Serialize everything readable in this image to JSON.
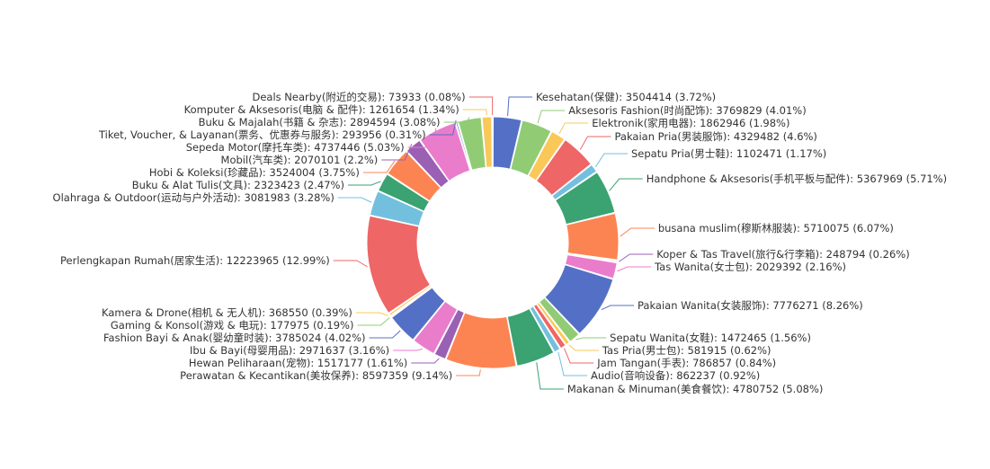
{
  "chart_data": {
    "type": "pie",
    "donut": true,
    "title": "",
    "colors": [
      "#5470c6",
      "#91cc75",
      "#fac858",
      "#ee6666",
      "#73c0de",
      "#3ba272",
      "#fc8452",
      "#9a60b4",
      "#ea7ccc"
    ],
    "slices": [
      {
        "label": "Kesehatan(保健): 3504414 (3.72%)",
        "value": 3504414
      },
      {
        "label": "Aksesoris Fashion(时尚配饰): 3769829 (4.01%)",
        "value": 3769829
      },
      {
        "label": "Elektronik(家用电器): 1862946 (1.98%)",
        "value": 1862946
      },
      {
        "label": "Pakaian Pria(男装服饰): 4329482 (4.6%)",
        "value": 4329482
      },
      {
        "label": "Sepatu Pria(男士鞋): 1102471 (1.17%)",
        "value": 1102471
      },
      {
        "label": "Handphone & Aksesoris(手机平板与配件): 5367969 (5.71%)",
        "value": 5367969
      },
      {
        "label": "busana muslim(穆斯林服装): 5710075 (6.07%)",
        "value": 5710075
      },
      {
        "label": "Koper & Tas Travel(旅行&行李箱): 248794 (0.26%)",
        "value": 248794
      },
      {
        "label": "Tas Wanita(女士包): 2029392 (2.16%)",
        "value": 2029392
      },
      {
        "label": "Pakaian Wanita(女装服饰): 7776271 (8.26%)",
        "value": 7776271
      },
      {
        "label": "Sepatu Wanita(女鞋): 1472465 (1.56%)",
        "value": 1472465
      },
      {
        "label": "Tas Pria(男士包): 581915 (0.62%)",
        "value": 581915
      },
      {
        "label": "Jam Tangan(手表): 786857 (0.84%)",
        "value": 786857
      },
      {
        "label": "Audio(音响设备): 862237 (0.92%)",
        "value": 862237
      },
      {
        "label": "Makanan & Minuman(美食餐饮): 4780752 (5.08%)",
        "value": 4780752
      },
      {
        "label": "Perawatan & Kecantikan(美妆保养): 8597359 (9.14%)",
        "value": 8597359
      },
      {
        "label": "Hewan Peliharaan(宠物): 1517177 (1.61%)",
        "value": 1517177
      },
      {
        "label": "Ibu & Bayi(母婴用品): 2971637 (3.16%)",
        "value": 2971637
      },
      {
        "label": "Fashion Bayi & Anak(婴幼童时装): 3785024 (4.02%)",
        "value": 3785024
      },
      {
        "label": "Gaming & Konsol(游戏 & 电玩): 177975 (0.19%)",
        "value": 177975
      },
      {
        "label": "Kamera & Drone(相机 & 无人机): 368550 (0.39%)",
        "value": 368550
      },
      {
        "label": "Perlengkapan Rumah(居家生活): 12223965 (12.99%)",
        "value": 12223965
      },
      {
        "label": "Olahraga & Outdoor(运动与户外活动): 3081983 (3.28%)",
        "value": 3081983
      },
      {
        "label": "Buku & Alat Tulis(文具): 2323423 (2.47%)",
        "value": 2323423
      },
      {
        "label": "Hobi & Koleksi(珍藏品): 3524004 (3.75%)",
        "value": 3524004
      },
      {
        "label": "Mobil(汽车类): 2070101 (2.2%)",
        "value": 2070101
      },
      {
        "label": "Sepeda Motor(摩托车类): 4737446 (5.03%)",
        "value": 4737446
      },
      {
        "label": "Tiket, Voucher, & Layanan(票务、优惠券与服务): 293956 (0.31%)",
        "value": 293956
      },
      {
        "label": "Buku & Majalah(书籍 & 杂志): 2894594 (3.08%)",
        "value": 2894594
      },
      {
        "label": "Komputer & Aksesoris(电脑 & 配件): 1261654 (1.34%)",
        "value": 1261654
      },
      {
        "label": "Deals Nearby(附近的交易): 73933 (0.08%)",
        "value": 73933
      }
    ]
  }
}
